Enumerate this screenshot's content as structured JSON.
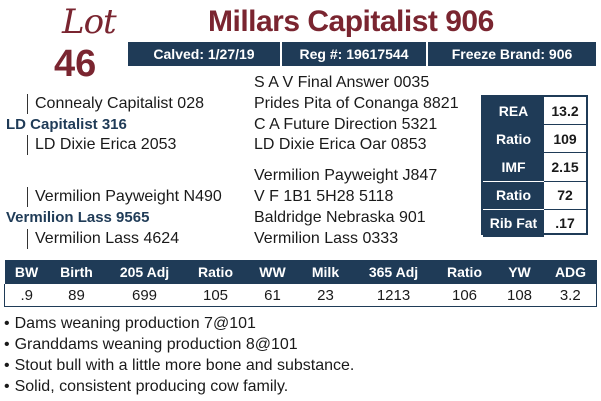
{
  "lot": {
    "word": "Lot",
    "number": "46"
  },
  "title": "Millars Capitalist 906",
  "info": {
    "calved": "Calved: 1/27/19",
    "reg": "Reg #: 19617544",
    "freeze_brand": "Freeze Brand: 906"
  },
  "pedigree": {
    "sss": "S A V Final Answer 0035",
    "ss": "Connealy Capitalist 028",
    "ssd": "Prides Pita of Conanga 8821",
    "sire": "LD Capitalist 316",
    "sds": "C A Future Direction 5321",
    "sd": "LD Dixie Erica 2053",
    "sdd": "LD Dixie Erica Oar 0853",
    "dss": "Vermilion Payweight J847",
    "ds": "Vermilion Payweight N490",
    "dsd": "V F 1B1 5H28 5118",
    "dam": "Vermilion Lass 9565",
    "dds": "Baldridge Nebraska 901",
    "dd": "Vermilion Lass 4624",
    "ddd": "Vermilion Lass 0333"
  },
  "carcass": [
    {
      "label": "REA",
      "value": "13.2"
    },
    {
      "label": "Ratio",
      "value": "109"
    },
    {
      "label": "IMF",
      "value": "2.15"
    },
    {
      "label": "Ratio",
      "value": "72"
    },
    {
      "label": "Rib Fat",
      "value": ".17"
    }
  ],
  "performance": {
    "headers": [
      "BW",
      "Birth",
      "205 Adj",
      "Ratio",
      "WW",
      "Milk",
      "365 Adj",
      "Ratio",
      "YW",
      "ADG"
    ],
    "values": [
      ".9",
      "89",
      "699",
      "105",
      "61",
      "23",
      "1213",
      "106",
      "108",
      "3.2"
    ]
  },
  "notes": [
    "Dams weaning production 7@101",
    "Granddams weaning production 8@101",
    "Stout bull with a little more bone and substance.",
    "Solid, consistent producing cow family."
  ],
  "colors": {
    "maroon": "#7a2530",
    "navy": "#1f3b57"
  }
}
